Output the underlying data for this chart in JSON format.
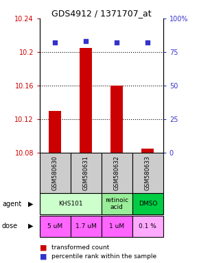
{
  "title": "GDS4912 / 1371707_at",
  "samples": [
    "GSM580630",
    "GSM580631",
    "GSM580632",
    "GSM580633"
  ],
  "bar_values": [
    10.13,
    10.205,
    10.16,
    10.085
  ],
  "bar_base": 10.08,
  "percentile_values": [
    82,
    83,
    82,
    82
  ],
  "ylim_left": [
    10.08,
    10.24
  ],
  "ylim_right": [
    0,
    100
  ],
  "yticks_left": [
    10.08,
    10.12,
    10.16,
    10.2,
    10.24
  ],
  "ytick_labels_left": [
    "10.08",
    "10.12",
    "10.16",
    "10.2",
    "10.24"
  ],
  "yticks_right": [
    0,
    25,
    50,
    75,
    100
  ],
  "ytick_labels_right": [
    "0",
    "25",
    "50",
    "75",
    "100%"
  ],
  "bar_color": "#cc0000",
  "dot_color": "#3333cc",
  "agent_row": [
    {
      "label": "KHS101",
      "span": [
        0,
        2
      ],
      "color": "#ccffcc"
    },
    {
      "label": "retinoic\nacid",
      "span": [
        2,
        3
      ],
      "color": "#99ee99"
    },
    {
      "label": "DMSO",
      "span": [
        3,
        4
      ],
      "color": "#00cc44"
    }
  ],
  "dose_row": [
    {
      "label": "5 uM",
      "span": [
        0,
        1
      ],
      "color": "#ff66ff"
    },
    {
      "label": "1.7 uM",
      "span": [
        1,
        2
      ],
      "color": "#ff66ff"
    },
    {
      "label": "1 uM",
      "span": [
        2,
        3
      ],
      "color": "#ff66ff"
    },
    {
      "label": "0.1 %",
      "span": [
        3,
        4
      ],
      "color": "#ffaaff"
    }
  ],
  "legend_bar_label": "transformed count",
  "legend_dot_label": "percentile rank within the sample",
  "sample_box_color": "#cccccc",
  "left_label_color": "#cc0000",
  "right_label_color": "#3333cc",
  "bar_width": 0.4
}
